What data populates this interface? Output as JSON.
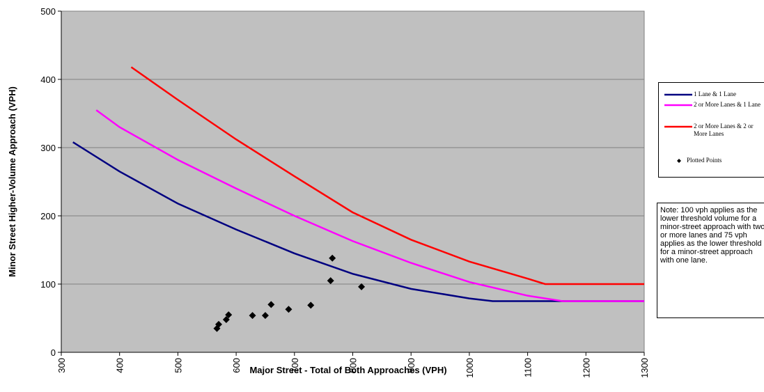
{
  "chart_data": {
    "type": "line",
    "x_label": "Major Street - Total of Both Approaches (VPH)",
    "y_label": "Minor Street Higher-Volume Approach (VPH)",
    "note": "Note: 100 vph applies as the lower threshold volume for a minor-street approach with two or more lanes and 75 vph applies as the lower threshold for a minor-street approach with one lane.",
    "xlim": [
      300,
      1300
    ],
    "xticks": [
      300,
      400,
      500,
      600,
      700,
      800,
      900,
      1000,
      1100,
      1200,
      1300
    ],
    "ylim": [
      0,
      500
    ],
    "yticks": [
      0,
      100,
      200,
      300,
      400,
      500
    ],
    "grid": true,
    "background": "#c0c0c0",
    "series": [
      {
        "name": "1 Lane & 1 Lane",
        "color": "#000080",
        "x": [
          320,
          400,
          500,
          600,
          700,
          800,
          900,
          1000,
          1040,
          1300
        ],
        "values": [
          308,
          265,
          218,
          180,
          145,
          115,
          93,
          79,
          75,
          75
        ]
      },
      {
        "name": "2 or More Lanes & 1 Lane",
        "color": "#ff00ff",
        "x": [
          360,
          400,
          500,
          600,
          700,
          800,
          900,
          1000,
          1100,
          1160,
          1300
        ],
        "values": [
          355,
          330,
          282,
          240,
          200,
          163,
          131,
          103,
          83,
          75,
          75
        ]
      },
      {
        "name": "2 or More Lanes & 2 or More Lanes",
        "color": "#ff0000",
        "x": [
          420,
          500,
          600,
          700,
          800,
          900,
          1000,
          1100,
          1130,
          1300
        ],
        "values": [
          418,
          370,
          312,
          258,
          205,
          165,
          133,
          108,
          100,
          100
        ]
      },
      {
        "name": "Plotted Points",
        "color": "#000000",
        "marker": "diamond",
        "x": [
          567,
          570,
          583,
          587,
          628,
          650,
          660,
          690,
          728,
          762,
          765,
          815
        ],
        "values": [
          35,
          41,
          48,
          55,
          54,
          54,
          70,
          63,
          69,
          105,
          138,
          96
        ]
      }
    ]
  }
}
